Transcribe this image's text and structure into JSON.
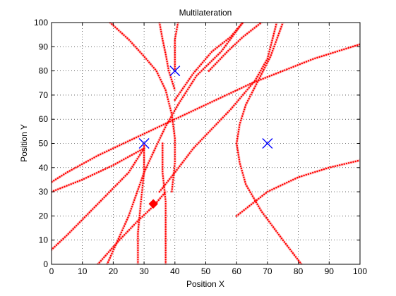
{
  "chart_data": {
    "type": "scatter",
    "title": "Multilateration",
    "xlabel": "Position X",
    "ylabel": "Position Y",
    "xlim": [
      0,
      100
    ],
    "ylim": [
      0,
      100
    ],
    "xticks": [
      "0",
      "10",
      "20",
      "30",
      "40",
      "50",
      "60",
      "70",
      "80",
      "90",
      "100"
    ],
    "yticks": [
      "0",
      "10",
      "20",
      "30",
      "40",
      "50",
      "60",
      "70",
      "80",
      "90",
      "100"
    ],
    "grid": true,
    "series": [
      {
        "marker": "x",
        "color": "#0000ff",
        "points": [
          [
            40,
            80
          ],
          [
            30,
            50
          ],
          [
            70,
            50
          ]
        ]
      },
      {
        "marker": "diamond",
        "color": "#ff0000",
        "points": [
          [
            33,
            25
          ]
        ]
      }
    ],
    "curve_color": "#ff0000",
    "curves": [
      [
        [
          60,
          20
        ],
        [
          70,
          30
        ],
        [
          80,
          36
        ],
        [
          90,
          40
        ],
        [
          100,
          43
        ]
      ],
      [
        [
          18,
          0
        ],
        [
          25,
          20
        ],
        [
          30,
          38
        ],
        [
          34,
          49
        ],
        [
          37,
          57
        ],
        [
          41,
          66
        ],
        [
          47,
          78
        ],
        [
          55,
          88
        ],
        [
          62,
          100
        ]
      ],
      [
        [
          -5,
          30
        ],
        [
          5,
          38
        ],
        [
          15,
          45
        ],
        [
          25,
          51
        ],
        [
          35,
          57
        ],
        [
          45,
          63
        ],
        [
          55,
          69
        ],
        [
          65,
          75
        ],
        [
          75,
          80
        ],
        [
          85,
          85
        ],
        [
          95,
          89
        ],
        [
          100,
          91
        ]
      ],
      [
        [
          -5,
          0
        ],
        [
          5,
          12
        ],
        [
          15,
          25
        ],
        [
          25,
          38
        ],
        [
          30,
          48
        ]
      ],
      [
        [
          0,
          30
        ],
        [
          10,
          35
        ],
        [
          20,
          41
        ],
        [
          30,
          48
        ]
      ],
      [
        [
          15,
          0
        ],
        [
          22,
          10
        ],
        [
          28,
          18
        ],
        [
          33,
          24
        ],
        [
          37,
          30
        ]
      ],
      [
        [
          35,
          30
        ],
        [
          40,
          38
        ],
        [
          46,
          48
        ],
        [
          52,
          56
        ],
        [
          58,
          64
        ],
        [
          62,
          70
        ],
        [
          66,
          76
        ],
        [
          70,
          85
        ],
        [
          73,
          100
        ]
      ],
      [
        [
          19,
          100
        ],
        [
          25,
          93
        ],
        [
          30,
          86
        ],
        [
          34,
          80
        ],
        [
          37,
          72
        ],
        [
          39,
          62
        ],
        [
          40,
          52
        ],
        [
          40,
          42
        ],
        [
          39,
          30
        ]
      ],
      [
        [
          40,
          68
        ],
        [
          46,
          79
        ],
        [
          52,
          88
        ],
        [
          58,
          94
        ],
        [
          62,
          100
        ]
      ],
      [
        [
          81,
          0
        ],
        [
          75,
          10
        ],
        [
          68,
          22
        ],
        [
          63,
          33
        ],
        [
          61,
          42
        ],
        [
          60,
          50
        ],
        [
          61,
          58
        ],
        [
          63,
          66
        ],
        [
          67,
          76
        ],
        [
          71,
          86
        ],
        [
          75,
          100
        ]
      ],
      [
        [
          28,
          0
        ],
        [
          28,
          13
        ],
        [
          29,
          26
        ],
        [
          30,
          38
        ],
        [
          30,
          50
        ]
      ],
      [
        [
          37,
          0
        ],
        [
          37,
          13
        ],
        [
          37,
          26
        ],
        [
          36,
          38
        ],
        [
          36,
          50
        ]
      ],
      [
        [
          35,
          100
        ],
        [
          36,
          93
        ],
        [
          37,
          87
        ],
        [
          38,
          80
        ],
        [
          40,
          72
        ]
      ],
      [
        [
          41,
          100
        ],
        [
          40,
          93
        ],
        [
          40,
          86
        ],
        [
          40,
          80
        ]
      ],
      [
        [
          51,
          80
        ],
        [
          57,
          88
        ],
        [
          62,
          94
        ],
        [
          68,
          100
        ]
      ]
    ]
  }
}
